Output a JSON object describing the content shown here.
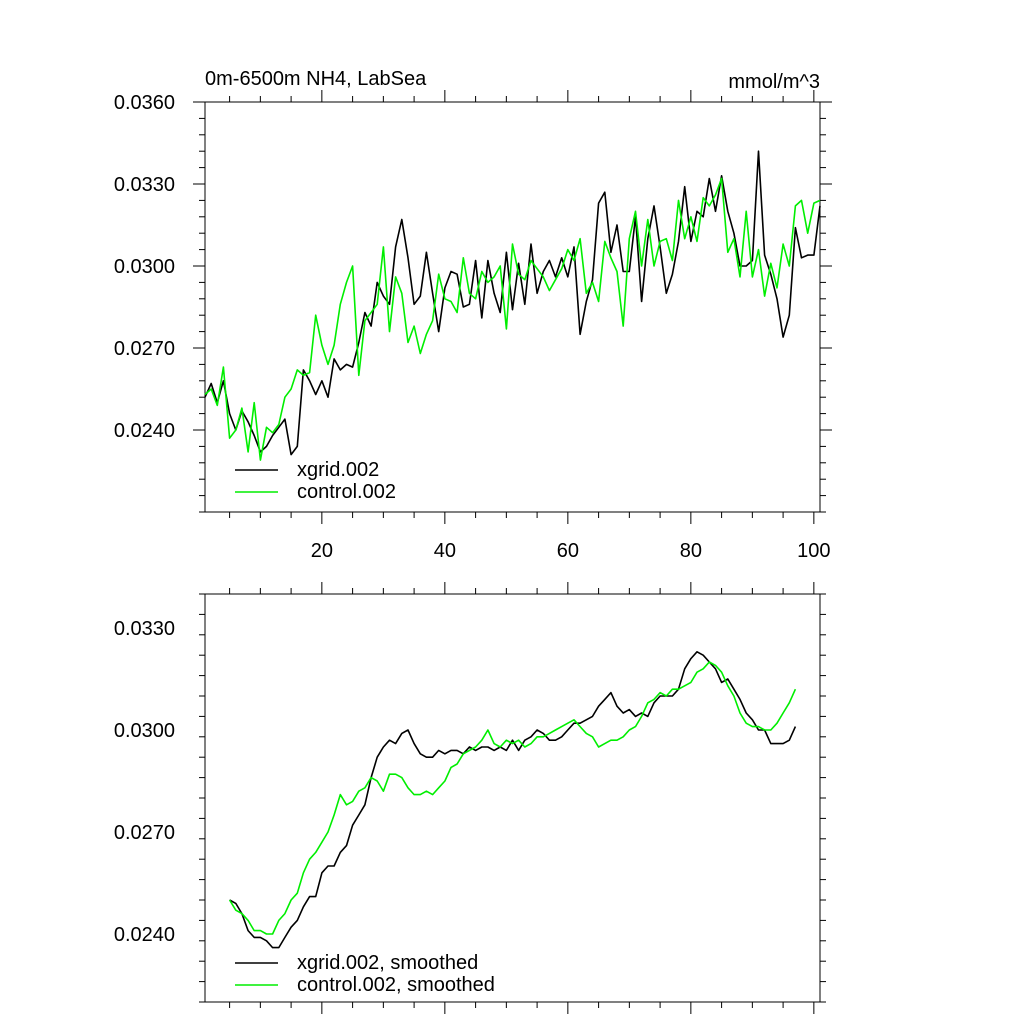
{
  "chart_data": [
    {
      "type": "line",
      "title_left": "0m-6500m NH4, LabSea",
      "title_right": "mmol/m^3",
      "xlim": [
        1,
        101
      ],
      "ylim": [
        0.021,
        0.036
      ],
      "xticks": [
        20,
        40,
        60,
        80,
        100
      ],
      "yticks": [
        0.024,
        0.027,
        0.03,
        0.033,
        0.036
      ],
      "ytick_labels": [
        "0.0240",
        "0.0270",
        "0.0300",
        "0.0330",
        "0.0360"
      ],
      "xtick_labels": [
        "20",
        "40",
        "60",
        "80",
        "100"
      ],
      "legend": {
        "entries": [
          "xgrid.002",
          "control.002"
        ],
        "placement": "bottom-left"
      },
      "series": [
        {
          "name": "xgrid.002",
          "color": "#000000",
          "x": [
            1,
            2,
            3,
            4,
            5,
            6,
            7,
            8,
            9,
            10,
            11,
            12,
            13,
            14,
            15,
            16,
            17,
            18,
            19,
            20,
            21,
            22,
            23,
            24,
            25,
            26,
            27,
            28,
            29,
            30,
            31,
            32,
            33,
            34,
            35,
            36,
            37,
            38,
            39,
            40,
            41,
            42,
            43,
            44,
            45,
            46,
            47,
            48,
            49,
            50,
            51,
            52,
            53,
            54,
            55,
            56,
            57,
            58,
            59,
            60,
            61,
            62,
            63,
            64,
            65,
            66,
            67,
            68,
            69,
            70,
            71,
            72,
            73,
            74,
            75,
            76,
            77,
            78,
            79,
            80,
            81,
            82,
            83,
            84,
            85,
            86,
            87,
            88,
            89,
            90,
            91,
            92,
            93,
            94,
            95,
            96,
            97,
            98,
            99,
            100,
            101
          ],
          "values": [
            0.0252,
            0.0257,
            0.025,
            0.0258,
            0.0246,
            0.024,
            0.0247,
            0.0243,
            0.0238,
            0.0232,
            0.0234,
            0.0238,
            0.0241,
            0.0244,
            0.0231,
            0.0234,
            0.0262,
            0.0258,
            0.0253,
            0.0258,
            0.0252,
            0.0266,
            0.0262,
            0.0264,
            0.0263,
            0.0272,
            0.0283,
            0.0278,
            0.0294,
            0.0289,
            0.0286,
            0.0307,
            0.0317,
            0.0303,
            0.0286,
            0.0289,
            0.0305,
            0.029,
            0.0276,
            0.0292,
            0.0298,
            0.0297,
            0.0285,
            0.0286,
            0.0302,
            0.0281,
            0.0302,
            0.029,
            0.0283,
            0.0305,
            0.0284,
            0.0301,
            0.0286,
            0.0308,
            0.029,
            0.0298,
            0.0302,
            0.0296,
            0.0303,
            0.0296,
            0.0307,
            0.0275,
            0.0287,
            0.0295,
            0.0323,
            0.0327,
            0.0305,
            0.0315,
            0.0298,
            0.0298,
            0.0318,
            0.0287,
            0.031,
            0.0322,
            0.0307,
            0.029,
            0.0297,
            0.0309,
            0.0329,
            0.0309,
            0.032,
            0.0318,
            0.0332,
            0.032,
            0.0333,
            0.032,
            0.0312,
            0.03,
            0.03,
            0.0302,
            0.0342,
            0.0304,
            0.0297,
            0.0288,
            0.0274,
            0.0282,
            0.0314,
            0.0303,
            0.0304,
            0.0304,
            0.0322
          ]
        },
        {
          "name": "control.002",
          "color": "#00ee00",
          "x": [
            1,
            2,
            3,
            4,
            5,
            6,
            7,
            8,
            9,
            10,
            11,
            12,
            13,
            14,
            15,
            16,
            17,
            18,
            19,
            20,
            21,
            22,
            23,
            24,
            25,
            26,
            27,
            28,
            29,
            30,
            31,
            32,
            33,
            34,
            35,
            36,
            37,
            38,
            39,
            40,
            41,
            42,
            43,
            44,
            45,
            46,
            47,
            48,
            49,
            50,
            51,
            52,
            53,
            54,
            55,
            56,
            57,
            58,
            59,
            60,
            61,
            62,
            63,
            64,
            65,
            66,
            67,
            68,
            69,
            70,
            71,
            72,
            73,
            74,
            75,
            76,
            77,
            78,
            79,
            80,
            81,
            82,
            83,
            84,
            85,
            86,
            87,
            88,
            89,
            90,
            91,
            92,
            93,
            94,
            95,
            96,
            97,
            98,
            99,
            100,
            101
          ],
          "values": [
            0.0253,
            0.0255,
            0.0249,
            0.0263,
            0.0237,
            0.024,
            0.0248,
            0.0232,
            0.025,
            0.0229,
            0.0241,
            0.0239,
            0.0242,
            0.0252,
            0.0255,
            0.0262,
            0.026,
            0.0261,
            0.0282,
            0.0271,
            0.0264,
            0.0271,
            0.0286,
            0.0294,
            0.03,
            0.026,
            0.028,
            0.0283,
            0.0286,
            0.0307,
            0.0276,
            0.0296,
            0.029,
            0.0272,
            0.0278,
            0.0268,
            0.0275,
            0.028,
            0.0297,
            0.0288,
            0.0287,
            0.0283,
            0.0303,
            0.029,
            0.0288,
            0.0298,
            0.0294,
            0.0296,
            0.03,
            0.0277,
            0.0308,
            0.0297,
            0.0295,
            0.0302,
            0.0299,
            0.0296,
            0.0291,
            0.0295,
            0.0299,
            0.0306,
            0.0302,
            0.031,
            0.029,
            0.0294,
            0.0287,
            0.0309,
            0.0303,
            0.0298,
            0.0278,
            0.031,
            0.032,
            0.03,
            0.0317,
            0.03,
            0.0309,
            0.031,
            0.0302,
            0.0324,
            0.031,
            0.0318,
            0.0309,
            0.0325,
            0.0322,
            0.0326,
            0.0332,
            0.0305,
            0.031,
            0.0296,
            0.032,
            0.0296,
            0.0306,
            0.0289,
            0.0301,
            0.0292,
            0.0308,
            0.03,
            0.0322,
            0.0324,
            0.0312,
            0.0323,
            0.0324
          ]
        }
      ]
    },
    {
      "type": "line",
      "xlim": [
        1,
        101
      ],
      "ylim": [
        0.022,
        0.034
      ],
      "xticks": [
        20,
        40,
        60,
        80,
        100
      ],
      "yticks": [
        0.024,
        0.027,
        0.03,
        0.033
      ],
      "ytick_labels": [
        "0.0240",
        "0.0270",
        "0.0300",
        "0.0330"
      ],
      "legend": {
        "entries": [
          "xgrid.002, smoothed",
          "control.002, smoothed"
        ],
        "placement": "bottom-left"
      },
      "series": [
        {
          "name": "xgrid.002, smoothed",
          "color": "#000000",
          "x": [
            5,
            6,
            7,
            8,
            9,
            10,
            11,
            12,
            13,
            14,
            15,
            16,
            17,
            18,
            19,
            20,
            21,
            22,
            23,
            24,
            25,
            26,
            27,
            28,
            29,
            30,
            31,
            32,
            33,
            34,
            35,
            36,
            37,
            38,
            39,
            40,
            41,
            42,
            43,
            44,
            45,
            46,
            47,
            48,
            49,
            50,
            51,
            52,
            53,
            54,
            55,
            56,
            57,
            58,
            59,
            60,
            61,
            62,
            63,
            64,
            65,
            66,
            67,
            68,
            69,
            70,
            71,
            72,
            73,
            74,
            75,
            76,
            77,
            78,
            79,
            80,
            81,
            82,
            83,
            84,
            85,
            86,
            87,
            88,
            89,
            90,
            91,
            92,
            93,
            94,
            95,
            96,
            97
          ],
          "values": [
            0.025,
            0.0249,
            0.0246,
            0.0241,
            0.0239,
            0.0239,
            0.0238,
            0.0236,
            0.0236,
            0.0239,
            0.0242,
            0.0244,
            0.0248,
            0.0251,
            0.0251,
            0.0258,
            0.026,
            0.026,
            0.0264,
            0.0266,
            0.0272,
            0.0275,
            0.0278,
            0.0286,
            0.0292,
            0.0295,
            0.0297,
            0.0296,
            0.0299,
            0.03,
            0.0296,
            0.0293,
            0.0292,
            0.0292,
            0.0294,
            0.0293,
            0.0294,
            0.0294,
            0.0293,
            0.0295,
            0.0294,
            0.0295,
            0.0295,
            0.0294,
            0.0295,
            0.0294,
            0.0297,
            0.0294,
            0.0297,
            0.0298,
            0.03,
            0.0299,
            0.0297,
            0.0297,
            0.0298,
            0.03,
            0.0302,
            0.0302,
            0.0303,
            0.0304,
            0.0307,
            0.0309,
            0.0311,
            0.0307,
            0.0305,
            0.0306,
            0.0304,
            0.0305,
            0.0304,
            0.0308,
            0.031,
            0.031,
            0.031,
            0.0312,
            0.0318,
            0.0321,
            0.0323,
            0.0322,
            0.032,
            0.0318,
            0.0314,
            0.0315,
            0.0312,
            0.0309,
            0.0305,
            0.0303,
            0.03,
            0.03,
            0.0296,
            0.0296,
            0.0296,
            0.0297,
            0.0301
          ]
        },
        {
          "name": "control.002, smoothed",
          "color": "#00ee00",
          "x": [
            5,
            6,
            7,
            8,
            9,
            10,
            11,
            12,
            13,
            14,
            15,
            16,
            17,
            18,
            19,
            20,
            21,
            22,
            23,
            24,
            25,
            26,
            27,
            28,
            29,
            30,
            31,
            32,
            33,
            34,
            35,
            36,
            37,
            38,
            39,
            40,
            41,
            42,
            43,
            44,
            45,
            46,
            47,
            48,
            49,
            50,
            51,
            52,
            53,
            54,
            55,
            56,
            57,
            58,
            59,
            60,
            61,
            62,
            63,
            64,
            65,
            66,
            67,
            68,
            69,
            70,
            71,
            72,
            73,
            74,
            75,
            76,
            77,
            78,
            79,
            80,
            81,
            82,
            83,
            84,
            85,
            86,
            87,
            88,
            89,
            90,
            91,
            92,
            93,
            94,
            95,
            96,
            97
          ],
          "values": [
            0.025,
            0.0247,
            0.0246,
            0.0244,
            0.0241,
            0.0241,
            0.024,
            0.024,
            0.0244,
            0.0246,
            0.025,
            0.0252,
            0.0258,
            0.0262,
            0.0264,
            0.0267,
            0.027,
            0.0275,
            0.0281,
            0.0278,
            0.0279,
            0.0282,
            0.0283,
            0.0286,
            0.0285,
            0.0282,
            0.0287,
            0.0287,
            0.0286,
            0.0283,
            0.0281,
            0.0281,
            0.0282,
            0.0281,
            0.0283,
            0.0285,
            0.0289,
            0.029,
            0.0293,
            0.0294,
            0.0295,
            0.0297,
            0.03,
            0.0296,
            0.0295,
            0.0297,
            0.0296,
            0.0297,
            0.0295,
            0.0296,
            0.0298,
            0.0298,
            0.0299,
            0.03,
            0.0301,
            0.0302,
            0.0303,
            0.0301,
            0.0299,
            0.0298,
            0.0295,
            0.0296,
            0.0297,
            0.0297,
            0.0298,
            0.03,
            0.0301,
            0.0304,
            0.0308,
            0.0309,
            0.0311,
            0.031,
            0.0312,
            0.0312,
            0.0313,
            0.0314,
            0.0317,
            0.0318,
            0.032,
            0.0319,
            0.0317,
            0.0313,
            0.031,
            0.0305,
            0.0302,
            0.0301,
            0.0301,
            0.03,
            0.03,
            0.0302,
            0.0305,
            0.0308,
            0.0312
          ]
        }
      ]
    }
  ]
}
